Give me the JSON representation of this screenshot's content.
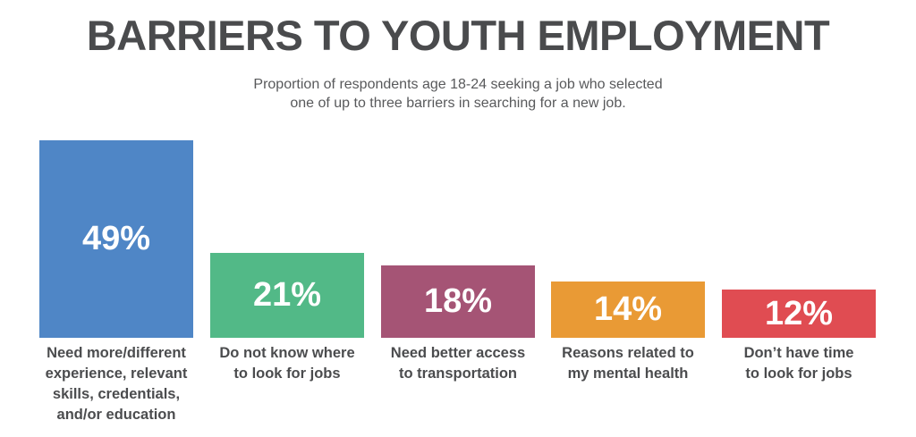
{
  "header": {
    "title": "BARRIERS TO YOUTH EMPLOYMENT",
    "subtitle_line1": "Proportion of respondents age 18-24 seeking a job who selected",
    "subtitle_line2": "one of up to three barriers in searching for a new job."
  },
  "bars": [
    {
      "value_label": "49%",
      "color": "#4f86c6",
      "label_lines": [
        "Need more/different",
        "experience, relevant",
        "skills, credentials,",
        "and/or education"
      ]
    },
    {
      "value_label": "21%",
      "color": "#52b987",
      "label_lines": [
        "Do not know where",
        "to look for jobs"
      ]
    },
    {
      "value_label": "18%",
      "color": "#a55475",
      "label_lines": [
        "Need better access",
        "to transportation"
      ]
    },
    {
      "value_label": "14%",
      "color": "#e99a35",
      "label_lines": [
        "Reasons related to",
        "my mental health"
      ]
    },
    {
      "value_label": "12%",
      "color": "#e04c52",
      "label_lines": [
        "Don’t have time",
        "to look for jobs"
      ]
    }
  ],
  "chart_data": {
    "type": "bar",
    "title": "BARRIERS TO YOUTH EMPLOYMENT",
    "subtitle": "Proportion of respondents age 18-24 seeking a job who selected one of up to three barriers in searching for a new job.",
    "categories": [
      "Need more/different experience, relevant skills, credentials, and/or education",
      "Do not know where to look for jobs",
      "Need better access to transportation",
      "Reasons related to my mental health",
      "Don’t have time to look for jobs"
    ],
    "values": [
      49,
      21,
      18,
      14,
      12
    ],
    "unit": "%",
    "colors": [
      "#4f86c6",
      "#52b987",
      "#a55475",
      "#e99a35",
      "#e04c52"
    ],
    "xlabel": "",
    "ylabel": "",
    "ylim": [
      0,
      49
    ],
    "grid": false,
    "legend": "none",
    "data_labels": true
  }
}
